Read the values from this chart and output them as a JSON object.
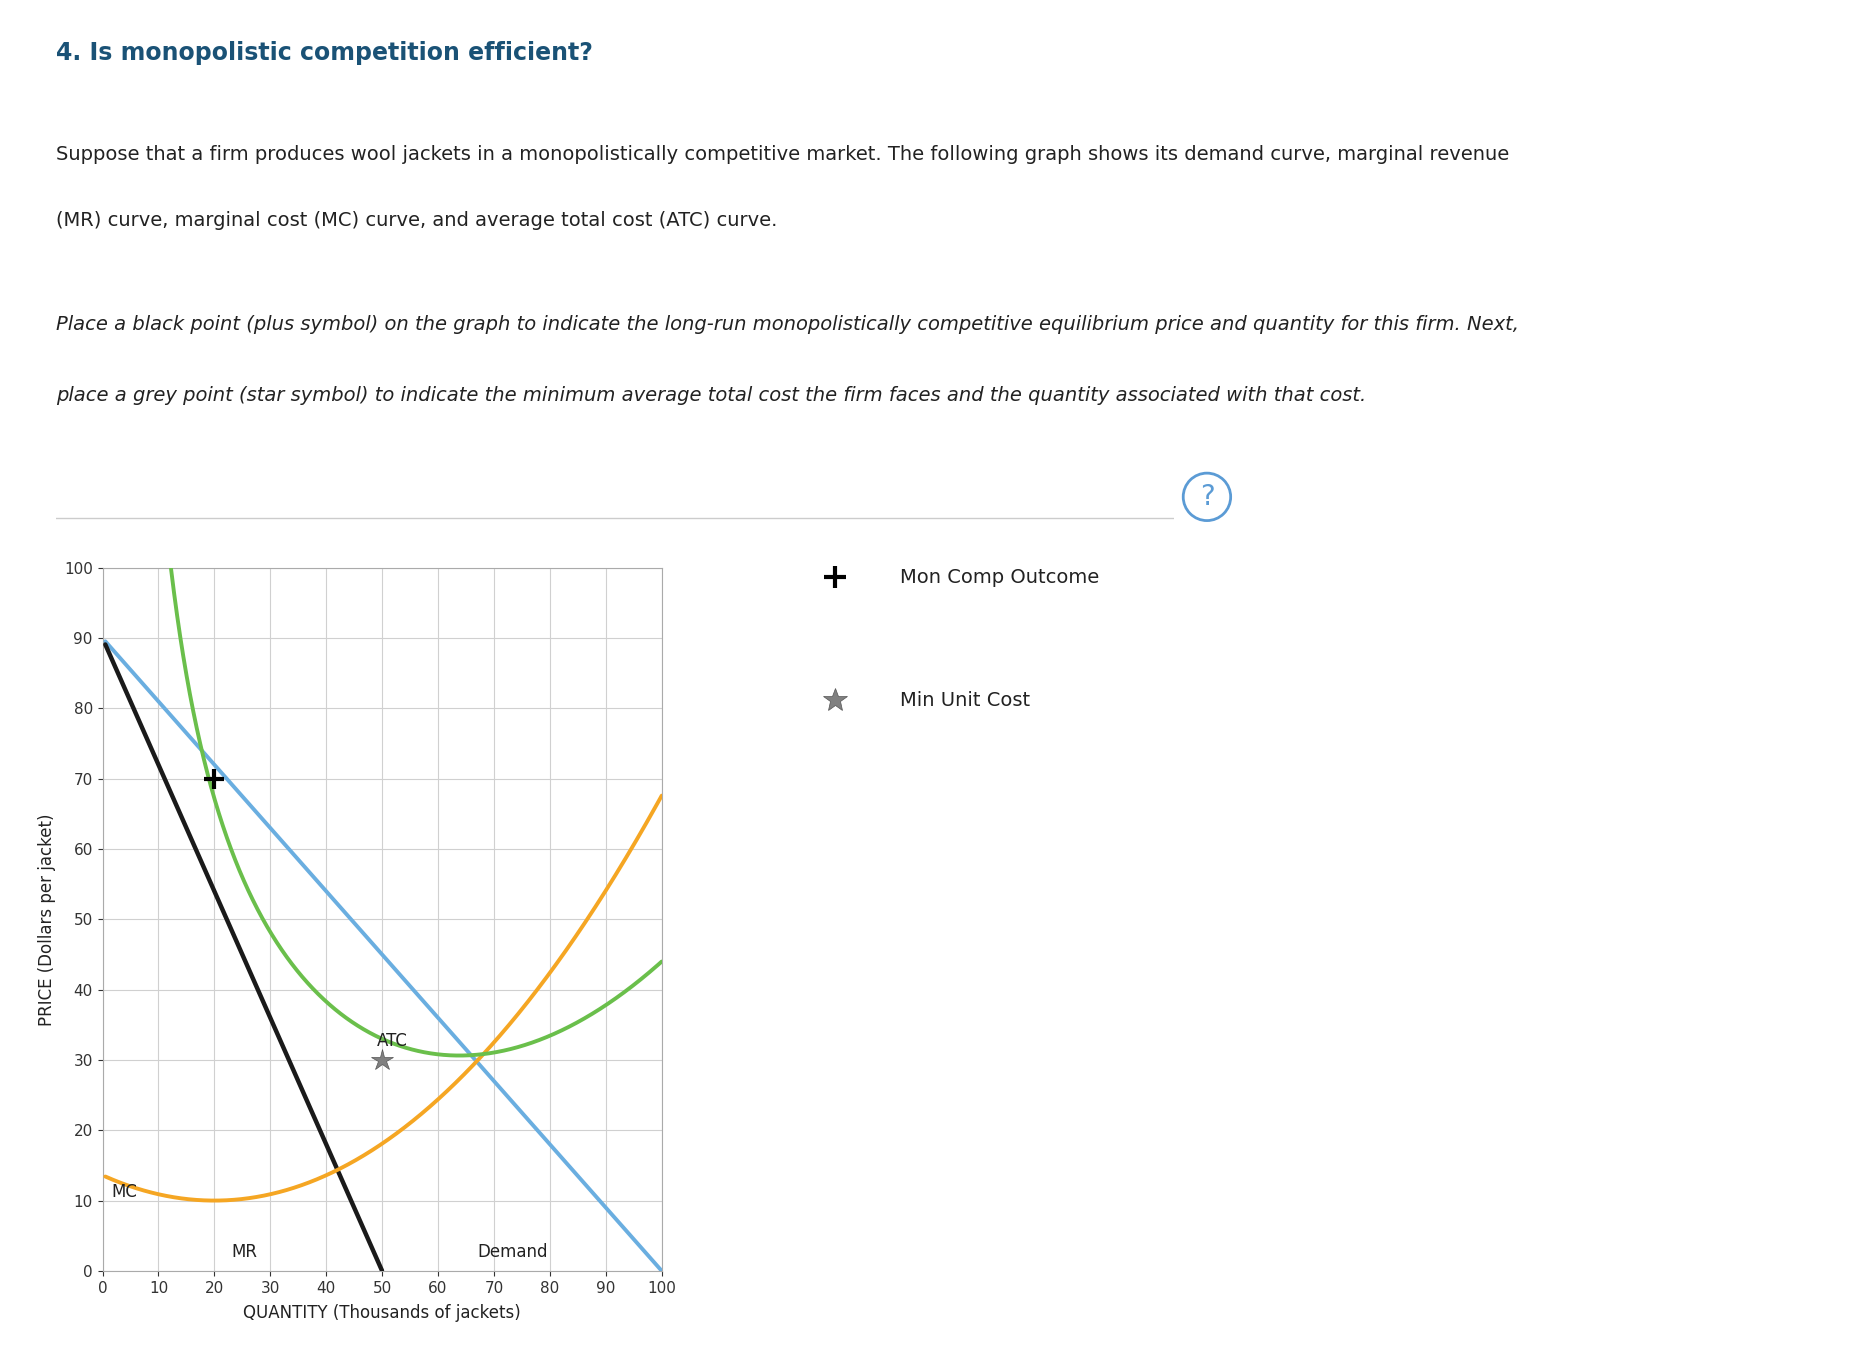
{
  "title_main": "4. Is monopolistic competition efficient?",
  "text1": "Suppose that a firm produces wool jackets in a monopolistically competitive market. The following graph shows its demand curve, marginal revenue",
  "text2": "(MR) curve, marginal cost (MC) curve, and average total cost (ATC) curve.",
  "text3": "Place a black point (plus symbol) on the graph to indicate the long-run monopolistically competitive equilibrium price and quantity for this firm. Next,",
  "text4": "place a grey point (star symbol) to indicate the minimum average total cost the firm faces and the quantity associated with that cost.",
  "xlabel": "QUANTITY (Thousands of jackets)",
  "ylabel": "PRICE (Dollars per jacket)",
  "xlim": [
    0,
    100
  ],
  "ylim": [
    0,
    100
  ],
  "xticks": [
    0,
    10,
    20,
    30,
    40,
    50,
    60,
    70,
    80,
    90,
    100
  ],
  "yticks": [
    0,
    10,
    20,
    30,
    40,
    50,
    60,
    70,
    80,
    90,
    100
  ],
  "demand_color": "#6aaee0",
  "mr_color": "#1a1a1a",
  "mc_color": "#f5a623",
  "atc_color": "#6abf4b",
  "demand_label": "Demand",
  "mr_label": "MR",
  "mc_label": "MC",
  "atc_label": "ATC",
  "eq_point_x": 20,
  "eq_point_y": 70,
  "min_atc_x": 50,
  "min_atc_y": 30,
  "legend_eq_label": "Mon Comp Outcome",
  "legend_min_label": "Min Unit Cost",
  "background_color": "#ffffff",
  "grid_color": "#d0d0d0",
  "title_color": "#1a5276",
  "text_color": "#222222"
}
